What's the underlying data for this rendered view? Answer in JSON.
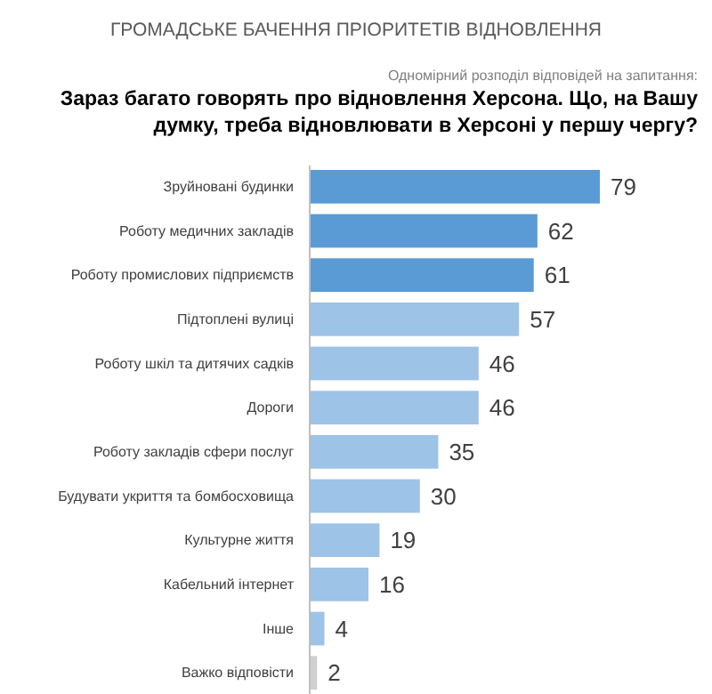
{
  "chart_data": {
    "type": "bar",
    "orientation": "horizontal",
    "title": "ГРОМАДСЬКЕ БАЧЕННЯ ПРІОРИТЕТІВ ВІДНОВЛЕННЯ",
    "subtitle": "Зараз багато говорять про відновлення Херсона. Що, на Вашу думку, треба відновлювати в Херсоні у першу чергу?",
    "annotations": [
      "Одномірний розподіл відповідей на запитання:"
    ],
    "categories": [
      "Зруйновані будинки",
      "Роботу медичних закладів",
      "Роботу промислових підприємств",
      "Підтоплені вулиці",
      "Роботу шкіл та дитячих садків",
      "Дороги",
      "Роботу закладів сфери послуг",
      "Будувати укриття та бомбосховища",
      "Культурне життя",
      "Кабельний інтернет",
      "Інше",
      "Важко відповісти"
    ],
    "values": [
      79,
      62,
      61,
      57,
      46,
      46,
      35,
      30,
      19,
      16,
      4,
      2
    ],
    "colors": [
      "#5b9bd5",
      "#5b9bd5",
      "#5b9bd5",
      "#9dc3e6",
      "#9dc3e6",
      "#9dc3e6",
      "#9dc3e6",
      "#9dc3e6",
      "#9dc3e6",
      "#9dc3e6",
      "#9dc3e6",
      "#d0d0d0"
    ],
    "data_labels": true,
    "tick_labels": "y"
  }
}
